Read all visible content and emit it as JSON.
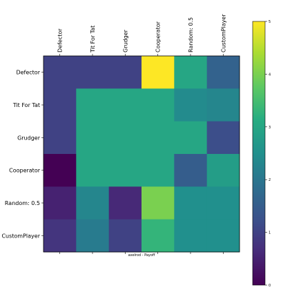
{
  "chart_data": {
    "type": "heatmap",
    "title": "",
    "xlabel": "axelrod - Payoff",
    "ylabel": "",
    "row_labels": [
      "Defector",
      "Tit For Tat",
      "Grudger",
      "Cooperator",
      "Random: 0.5",
      "CustomPlayer"
    ],
    "col_labels": [
      "Defector",
      "Tit For Tat",
      "Grudger",
      "Cooperator",
      "Random: 0.5",
      "CustomPlayer"
    ],
    "values": [
      [
        1.0,
        1.0,
        1.0,
        5.0,
        3.0,
        1.6
      ],
      [
        1.0,
        3.0,
        3.0,
        3.0,
        2.4,
        2.3
      ],
      [
        1.0,
        3.0,
        3.0,
        3.0,
        3.0,
        1.2
      ],
      [
        0.0,
        3.0,
        3.0,
        3.0,
        1.5,
        2.8
      ],
      [
        0.5,
        2.3,
        0.6,
        4.0,
        2.5,
        2.5
      ],
      [
        0.8,
        2.1,
        1.0,
        3.3,
        2.5,
        2.5
      ]
    ],
    "colormap": "viridis",
    "colorbar": {
      "range": [
        0,
        5
      ],
      "ticks": [
        "0",
        "1",
        "2",
        "3",
        "4",
        "5"
      ]
    },
    "grid": false
  }
}
